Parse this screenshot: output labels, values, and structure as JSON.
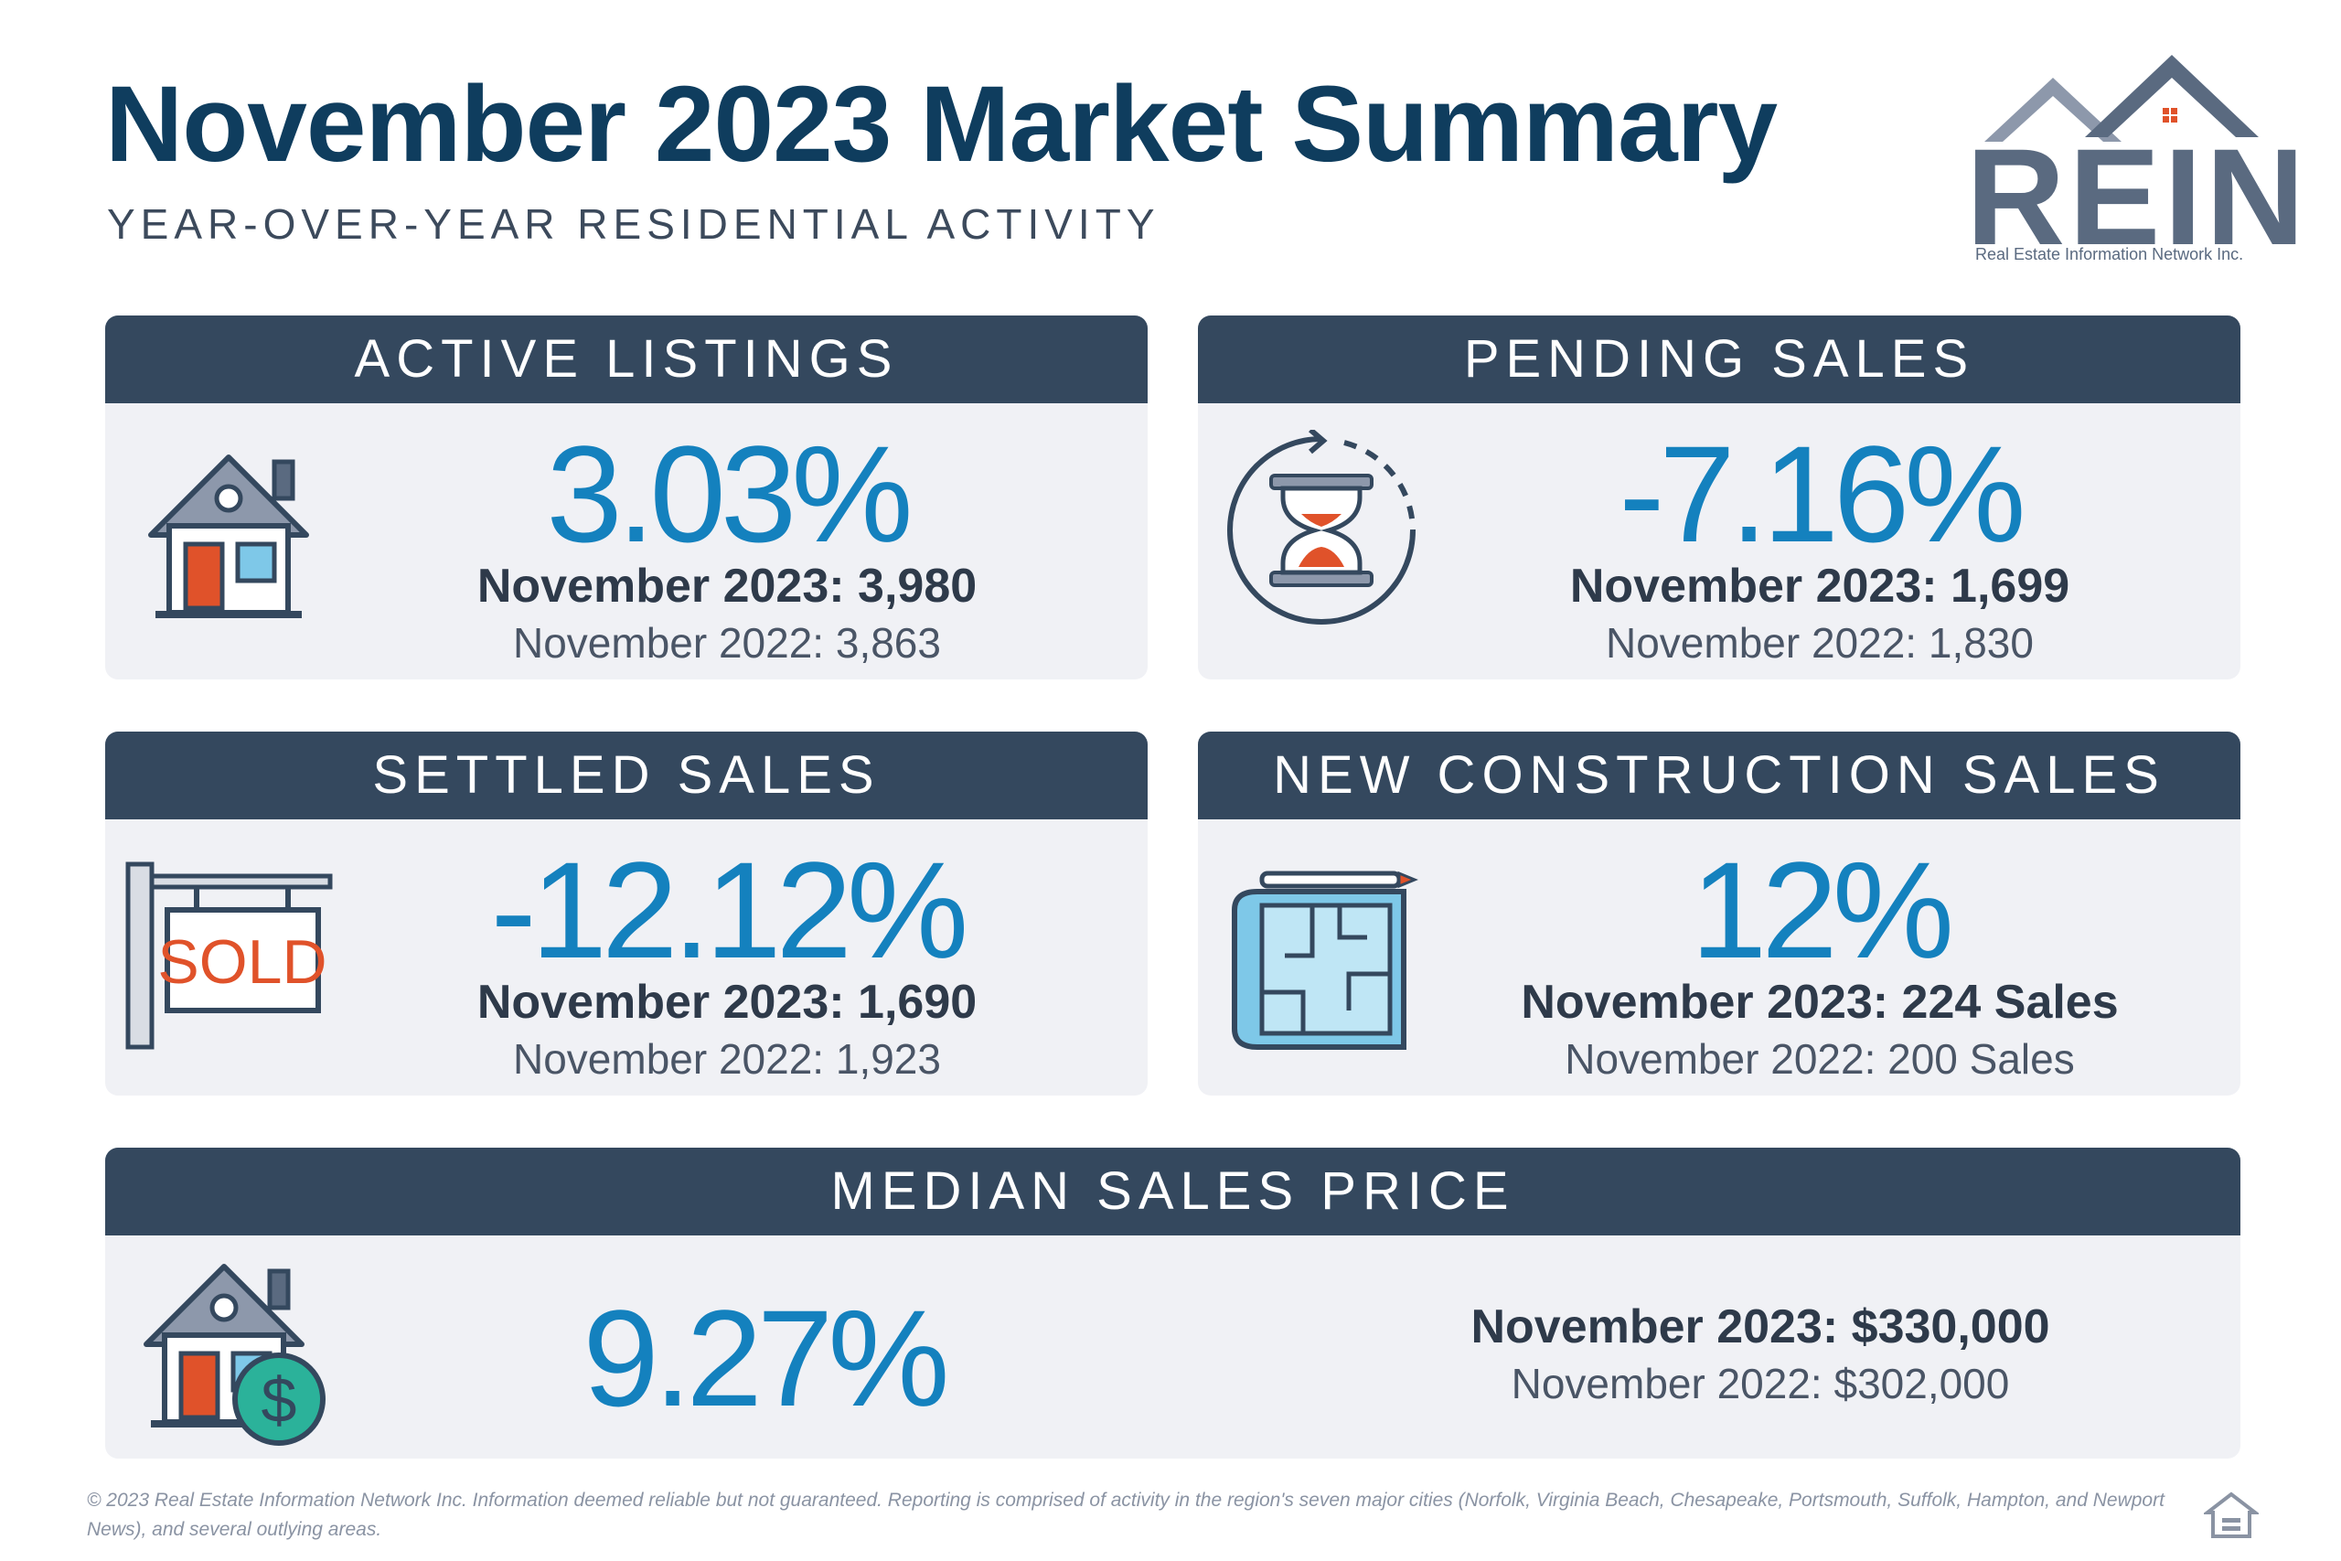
{
  "header": {
    "title": "November 2023 Market Summary",
    "subtitle": "YEAR-OVER-YEAR RESIDENTIAL ACTIVITY"
  },
  "logo": {
    "text": "REIN",
    "subtext": "Real Estate Information Network Inc."
  },
  "cards": {
    "active_listings": {
      "title": "ACTIVE LISTINGS",
      "change": "3.03%",
      "current": "November 2023: 3,980",
      "previous": "November 2022: 3,863",
      "icon": "house-icon"
    },
    "pending_sales": {
      "title": "PENDING SALES",
      "change": "-7.16%",
      "current": "November 2023: 1,699",
      "previous": "November 2022: 1,830",
      "icon": "hourglass-icon"
    },
    "settled_sales": {
      "title": "SETTLED SALES",
      "change": "-12.12%",
      "current": "November 2023: 1,690",
      "previous": "November 2022: 1,923",
      "icon": "sold-sign-icon",
      "sign_text": "SOLD"
    },
    "new_construction": {
      "title": "NEW CONSTRUCTION SALES",
      "change": "12%",
      "current": "November 2023: 224 Sales",
      "previous": "November 2022: 200 Sales",
      "icon": "blueprint-icon"
    },
    "median_price": {
      "title": "MEDIAN SALES PRICE",
      "change": "9.27%",
      "current": "November 2023: $330,000",
      "previous": "November 2022: $302,000",
      "icon": "house-dollar-icon"
    }
  },
  "footer": {
    "text": "© 2023 Real Estate Information Network Inc. Information deemed reliable but not guaranteed. Reporting is comprised of activity in the region's seven major cities (Norfolk, Virginia Beach, Chesapeake, Portsmouth, Suffolk, Hampton, and Newport News), and several outlying areas."
  },
  "colors": {
    "header_bg": "#34485e",
    "card_bg": "#f0f1f5",
    "accent_blue": "#1481be",
    "title_navy": "#0f3d5e",
    "door_orange": "#e0522a"
  }
}
